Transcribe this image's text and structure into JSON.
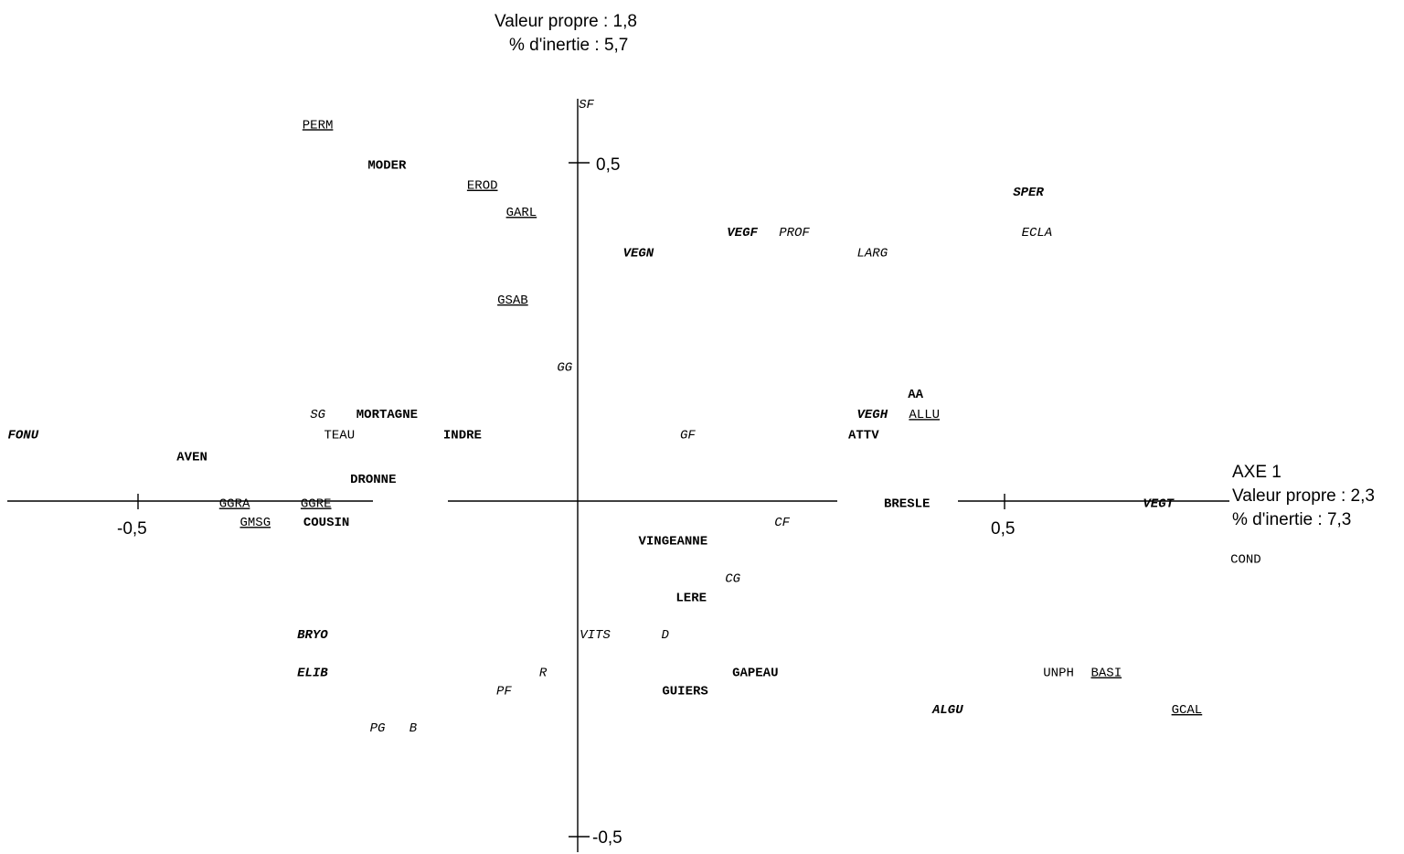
{
  "axis2_info": {
    "eigenvalue": "Valeur propre : 1,8",
    "inertia": "% d'inertie : 5,7"
  },
  "axis1_info": {
    "name": "AXE 1",
    "eigenvalue": "Valeur propre : 2,3",
    "inertia": "% d'inertie : 7,3"
  },
  "chart_data": {
    "type": "scatter",
    "title": "",
    "xlabel": "AXE 1",
    "ylabel": "",
    "xlim": [
      -0.67,
      0.75
    ],
    "ylim": [
      -0.55,
      0.65
    ],
    "xticks": [
      {
        "value": -0.5,
        "label": "-0,5"
      },
      {
        "value": 0.5,
        "label": "0,5"
      }
    ],
    "yticks": [
      {
        "value": 0.5,
        "label": "0,5"
      },
      {
        "value": -0.5,
        "label": "-0,5"
      }
    ],
    "grid": false,
    "points": [
      {
        "label": "SF",
        "x": 0.01,
        "y": 0.59,
        "style": "italic"
      },
      {
        "label": "PERM",
        "x": -0.3,
        "y": 0.56,
        "style": "underline"
      },
      {
        "label": "MODER",
        "x": -0.22,
        "y": 0.5,
        "style": "bold"
      },
      {
        "label": "EROD",
        "x": -0.11,
        "y": 0.47,
        "style": "underline"
      },
      {
        "label": "GARL",
        "x": -0.065,
        "y": 0.43,
        "style": "underline"
      },
      {
        "label": "SPER",
        "x": 0.52,
        "y": 0.46,
        "style": "bold italic"
      },
      {
        "label": "ECLA",
        "x": 0.53,
        "y": 0.4,
        "style": "italic"
      },
      {
        "label": "VEGF",
        "x": 0.19,
        "y": 0.4,
        "style": "bold italic"
      },
      {
        "label": "PROF",
        "x": 0.25,
        "y": 0.4,
        "style": "italic"
      },
      {
        "label": "VEGN",
        "x": 0.07,
        "y": 0.37,
        "style": "bold italic"
      },
      {
        "label": "LARG",
        "x": 0.34,
        "y": 0.37,
        "style": "italic"
      },
      {
        "label": "GSAB",
        "x": -0.075,
        "y": 0.3,
        "style": "underline"
      },
      {
        "label": "GG",
        "x": -0.015,
        "y": 0.2,
        "style": "italic"
      },
      {
        "label": "AA",
        "x": 0.39,
        "y": 0.16,
        "style": "bold"
      },
      {
        "label": "SG",
        "x": -0.3,
        "y": 0.13,
        "style": "italic"
      },
      {
        "label": "MORTAGNE",
        "x": -0.22,
        "y": 0.13,
        "style": "bold"
      },
      {
        "label": "VEGH",
        "x": 0.34,
        "y": 0.13,
        "style": "bold italic"
      },
      {
        "label": "ALLU",
        "x": 0.4,
        "y": 0.13,
        "style": "underline"
      },
      {
        "label": "FONU",
        "x": -0.64,
        "y": 0.1,
        "style": "bold italic"
      },
      {
        "label": "TEAU",
        "x": -0.275,
        "y": 0.1,
        "style": ""
      },
      {
        "label": "INDRE",
        "x": -0.133,
        "y": 0.1,
        "style": "bold"
      },
      {
        "label": "GF",
        "x": 0.127,
        "y": 0.1,
        "style": "italic"
      },
      {
        "label": "ATTV",
        "x": 0.33,
        "y": 0.1,
        "style": "bold"
      },
      {
        "label": "AVEN",
        "x": -0.445,
        "y": 0.067,
        "style": "bold"
      },
      {
        "label": "DRONNE",
        "x": -0.236,
        "y": 0.034,
        "style": "bold"
      },
      {
        "label": "GGRA",
        "x": -0.396,
        "y": -0.002,
        "style": "underline"
      },
      {
        "label": "GGRE",
        "x": -0.302,
        "y": -0.002,
        "style": "underline"
      },
      {
        "label": "BRESLE",
        "x": 0.38,
        "y": -0.002,
        "style": "bold"
      },
      {
        "label": "VEGT",
        "x": 0.67,
        "y": -0.002,
        "style": "bold italic"
      },
      {
        "label": "GMSG",
        "x": -0.372,
        "y": -0.03,
        "style": "underline"
      },
      {
        "label": "COUSIN",
        "x": -0.29,
        "y": -0.03,
        "style": "bold"
      },
      {
        "label": "CF",
        "x": 0.236,
        "y": -0.03,
        "style": "italic"
      },
      {
        "label": "VINGEANNE",
        "x": 0.11,
        "y": -0.058,
        "style": "bold"
      },
      {
        "label": "COND",
        "x": 0.771,
        "y": -0.085,
        "style": ""
      },
      {
        "label": "CG",
        "x": 0.179,
        "y": -0.113,
        "style": "italic"
      },
      {
        "label": "LERE",
        "x": 0.131,
        "y": -0.142,
        "style": "bold"
      },
      {
        "label": "BRYO",
        "x": -0.306,
        "y": -0.197,
        "style": "bold italic"
      },
      {
        "label": "VITS",
        "x": 0.02,
        "y": -0.197,
        "style": "italic"
      },
      {
        "label": "D",
        "x": 0.101,
        "y": -0.197,
        "style": "italic"
      },
      {
        "label": "ELIB",
        "x": -0.306,
        "y": -0.253,
        "style": "bold italic"
      },
      {
        "label": "R",
        "x": -0.04,
        "y": -0.253,
        "style": "italic"
      },
      {
        "label": "GAPEAU",
        "x": 0.205,
        "y": -0.253,
        "style": "bold"
      },
      {
        "label": "UNPH",
        "x": 0.555,
        "y": -0.253,
        "style": ""
      },
      {
        "label": "BASI",
        "x": 0.61,
        "y": -0.253,
        "style": "underline"
      },
      {
        "label": "PF",
        "x": -0.085,
        "y": -0.28,
        "style": "italic"
      },
      {
        "label": "GUIERS",
        "x": 0.124,
        "y": -0.28,
        "style": "bold"
      },
      {
        "label": "ALGU",
        "x": 0.427,
        "y": -0.308,
        "style": "bold italic"
      },
      {
        "label": "GCAL",
        "x": 0.703,
        "y": -0.308,
        "style": "underline"
      },
      {
        "label": "PG",
        "x": -0.231,
        "y": -0.335,
        "style": "italic"
      },
      {
        "label": "B",
        "x": -0.19,
        "y": -0.335,
        "style": "italic"
      }
    ]
  }
}
